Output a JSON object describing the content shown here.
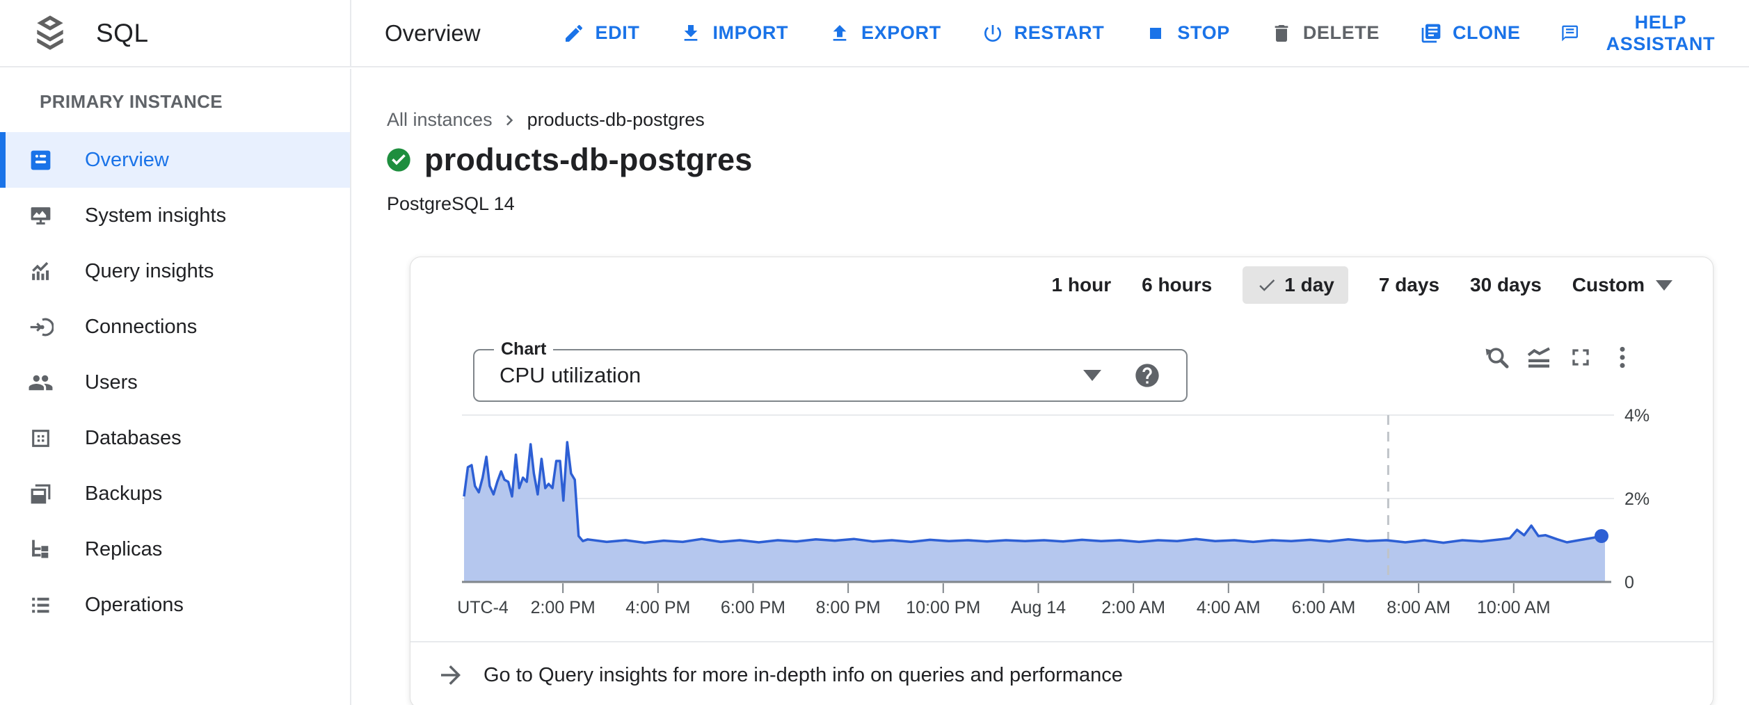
{
  "app": {
    "product_name": "SQL"
  },
  "colors": {
    "accent_blue": "#1a73e8",
    "active_nav_bg": "#e8f0fe",
    "disabled_gray": "#5f6368",
    "status_green": "#1e8e3e",
    "selected_chip_bg": "#e4e4e4"
  },
  "topbar": {
    "page_title": "Overview",
    "actions": [
      {
        "label": "EDIT",
        "icon": "edit-icon",
        "color": "blue"
      },
      {
        "label": "IMPORT",
        "icon": "import-icon",
        "color": "blue"
      },
      {
        "label": "EXPORT",
        "icon": "export-icon",
        "color": "blue"
      },
      {
        "label": "RESTART",
        "icon": "restart-icon",
        "color": "blue"
      },
      {
        "label": "STOP",
        "icon": "stop-icon",
        "color": "blue"
      },
      {
        "label": "DELETE",
        "icon": "delete-icon",
        "color": "gray"
      },
      {
        "label": "CLONE",
        "icon": "clone-icon",
        "color": "blue"
      },
      {
        "label": "HELP ASSISTANT",
        "icon": "help-assistant-icon",
        "color": "blue",
        "align": "right"
      }
    ]
  },
  "sidebar": {
    "section_label": "PRIMARY INSTANCE",
    "items": [
      {
        "label": "Overview",
        "icon": "instance-overview-icon",
        "active": true
      },
      {
        "label": "System insights",
        "icon": "system-insights-icon",
        "active": false
      },
      {
        "label": "Query insights",
        "icon": "query-insights-icon",
        "active": false
      },
      {
        "label": "Connections",
        "icon": "connections-icon",
        "active": false
      },
      {
        "label": "Users",
        "icon": "users-icon",
        "active": false
      },
      {
        "label": "Databases",
        "icon": "databases-icon",
        "active": false
      },
      {
        "label": "Backups",
        "icon": "backups-icon",
        "active": false
      },
      {
        "label": "Replicas",
        "icon": "replicas-icon",
        "active": false
      },
      {
        "label": "Operations",
        "icon": "operations-icon",
        "active": false
      }
    ]
  },
  "main": {
    "breadcrumb": {
      "parent": "All instances",
      "current": "products-db-postgres"
    },
    "instance": {
      "name": "products-db-postgres",
      "status": "healthy",
      "engine": "PostgreSQL 14"
    },
    "time_ranges": {
      "options": [
        "1 hour",
        "6 hours",
        "1 day",
        "7 days",
        "30 days",
        "Custom"
      ],
      "selected": "1 day"
    },
    "chart_selector": {
      "label": "Chart",
      "value": "CPU utilization"
    },
    "query_insights_banner": "Go to Query insights for more in-depth info on queries and performance"
  },
  "chart_data": {
    "type": "area",
    "title": "CPU utilization",
    "x_axis_note": "UTC-4",
    "x_domain_hours": 24,
    "x_ticks": [
      {
        "label": "2:00 PM",
        "t": 2.08
      },
      {
        "label": "4:00 PM",
        "t": 4.08
      },
      {
        "label": "6:00 PM",
        "t": 6.08
      },
      {
        "label": "8:00 PM",
        "t": 8.08
      },
      {
        "label": "10:00 PM",
        "t": 10.08
      },
      {
        "label": "Aug 14",
        "t": 12.08
      },
      {
        "label": "2:00 AM",
        "t": 14.08
      },
      {
        "label": "4:00 AM",
        "t": 16.08
      },
      {
        "label": "6:00 AM",
        "t": 18.08
      },
      {
        "label": "8:00 AM",
        "t": 20.08
      },
      {
        "label": "10:00 AM",
        "t": 22.08
      }
    ],
    "y_axis": {
      "unit": "%",
      "gridlines": [
        {
          "label": "4%",
          "value": 4
        },
        {
          "label": "2%",
          "value": 2
        },
        {
          "label": "0",
          "value": 0
        }
      ],
      "max_value": 4.33
    },
    "marker_line_t": 19.44,
    "series": [
      {
        "name": "CPU utilization",
        "points": [
          [
            0,
            2.05
          ],
          [
            0.08,
            2.75
          ],
          [
            0.16,
            2.8
          ],
          [
            0.23,
            2.3
          ],
          [
            0.31,
            2.15
          ],
          [
            0.39,
            2.5
          ],
          [
            0.47,
            3.0
          ],
          [
            0.54,
            2.3
          ],
          [
            0.62,
            2.1
          ],
          [
            0.7,
            2.4
          ],
          [
            0.78,
            2.65
          ],
          [
            0.85,
            2.45
          ],
          [
            0.93,
            2.4
          ],
          [
            1.01,
            2.05
          ],
          [
            1.09,
            3.05
          ],
          [
            1.16,
            2.25
          ],
          [
            1.24,
            2.5
          ],
          [
            1.32,
            2.4
          ],
          [
            1.4,
            3.3
          ],
          [
            1.47,
            2.6
          ],
          [
            1.55,
            2.1
          ],
          [
            1.63,
            2.95
          ],
          [
            1.71,
            2.25
          ],
          [
            1.78,
            2.35
          ],
          [
            1.86,
            2.25
          ],
          [
            1.94,
            2.9
          ],
          [
            2.02,
            2.9
          ],
          [
            2.09,
            1.95
          ],
          [
            2.17,
            3.35
          ],
          [
            2.25,
            2.6
          ],
          [
            2.33,
            2.45
          ],
          [
            2.41,
            1.1
          ],
          [
            2.5,
            0.98
          ],
          [
            2.6,
            1.02
          ],
          [
            3.0,
            0.96
          ],
          [
            3.4,
            1.0
          ],
          [
            3.8,
            0.94
          ],
          [
            4.2,
            0.99
          ],
          [
            4.6,
            0.96
          ],
          [
            5.0,
            1.03
          ],
          [
            5.4,
            0.96
          ],
          [
            5.8,
            1.0
          ],
          [
            6.2,
            0.95
          ],
          [
            6.6,
            1.0
          ],
          [
            7.0,
            0.97
          ],
          [
            7.4,
            1.02
          ],
          [
            7.8,
            0.99
          ],
          [
            8.2,
            1.03
          ],
          [
            8.6,
            0.97
          ],
          [
            9.0,
            1.0
          ],
          [
            9.4,
            0.96
          ],
          [
            9.8,
            1.01
          ],
          [
            10.2,
            0.98
          ],
          [
            10.6,
            1.0
          ],
          [
            11.0,
            0.97
          ],
          [
            11.4,
            1.0
          ],
          [
            11.8,
            0.98
          ],
          [
            12.2,
            1.0
          ],
          [
            12.6,
            0.97
          ],
          [
            13.0,
            1.01
          ],
          [
            13.4,
            0.98
          ],
          [
            13.8,
            1.0
          ],
          [
            14.2,
            0.96
          ],
          [
            14.6,
            1.0
          ],
          [
            15.0,
            0.98
          ],
          [
            15.4,
            1.03
          ],
          [
            15.8,
            0.98
          ],
          [
            16.2,
            1.0
          ],
          [
            16.6,
            0.96
          ],
          [
            17.0,
            1.0
          ],
          [
            17.4,
            0.98
          ],
          [
            17.8,
            1.01
          ],
          [
            18.2,
            0.97
          ],
          [
            18.6,
            1.02
          ],
          [
            19.0,
            0.98
          ],
          [
            19.4,
            1.0
          ],
          [
            19.8,
            0.95
          ],
          [
            20.2,
            1.0
          ],
          [
            20.6,
            0.94
          ],
          [
            21.0,
            1.0
          ],
          [
            21.4,
            0.97
          ],
          [
            21.8,
            1.02
          ],
          [
            22.0,
            1.05
          ],
          [
            22.15,
            1.25
          ],
          [
            22.3,
            1.12
          ],
          [
            22.45,
            1.35
          ],
          [
            22.6,
            1.1
          ],
          [
            22.75,
            1.12
          ],
          [
            23.0,
            1.02
          ],
          [
            23.2,
            0.95
          ],
          [
            23.45,
            1.0
          ],
          [
            23.65,
            1.04
          ],
          [
            23.85,
            1.08
          ],
          [
            24,
            1.1
          ]
        ]
      }
    ],
    "colors": {
      "line": "#2d5fd4",
      "fill": "#b5c7ee",
      "end_dot": "#2d5fd4",
      "gridline": "#e8eaed",
      "baseline": "#80868b",
      "marker_dash": "#c0c4c9"
    }
  }
}
